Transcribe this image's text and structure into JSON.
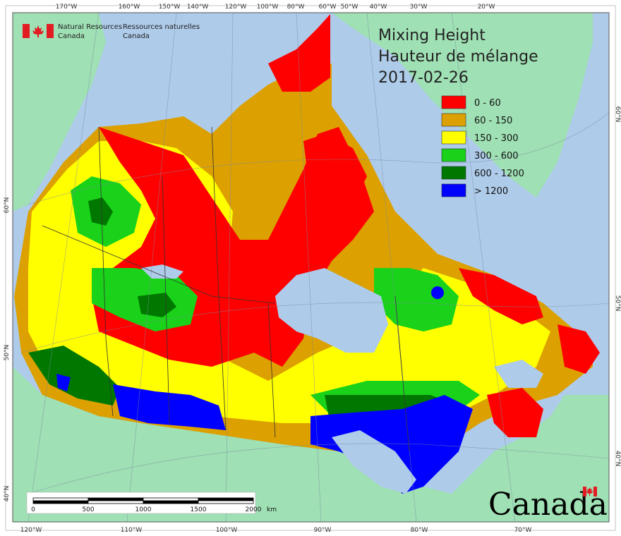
{
  "title": {
    "line1": "Mixing Height",
    "line2": "Hauteur de mélange",
    "date": "2017-02-26"
  },
  "agency": {
    "en_line1": "Natural Resources",
    "en_line2": "Canada",
    "fr_line1": "Ressources naturelles",
    "fr_line2": "Canada"
  },
  "wordmark": "Canada",
  "legend": [
    {
      "label": "0 - 60",
      "color": "#ff0000"
    },
    {
      "label": "60 - 150",
      "color": "#dca000"
    },
    {
      "label": "150 - 300",
      "color": "#ffff00"
    },
    {
      "label": "300 - 600",
      "color": "#19d219"
    },
    {
      "label": "600 - 1200",
      "color": "#007800"
    },
    {
      "label": "> 1200",
      "color": "#0000ff"
    }
  ],
  "top_ticks": [
    "170°W",
    "160°W",
    "150°W",
    "140°W",
    "120°W",
    "100°W",
    "80°W",
    "60°W",
    "50°W",
    "40°W",
    "30°W",
    "20°W"
  ],
  "bottom_ticks": [
    "120°W",
    "110°W",
    "100°W",
    "90°W",
    "80°W",
    "70°W"
  ],
  "left_ticks": [
    "60°N",
    "50°N",
    "40°N"
  ],
  "right_ticks": [
    "60°N",
    "50°N",
    "40°N"
  ],
  "scalebar": {
    "labels": [
      "0",
      "500",
      "1000",
      "1500",
      "2000"
    ],
    "unit": "km"
  },
  "colors": {
    "ocean": "#aecbea",
    "land": "#9fe0b4",
    "frame": "#555555"
  }
}
